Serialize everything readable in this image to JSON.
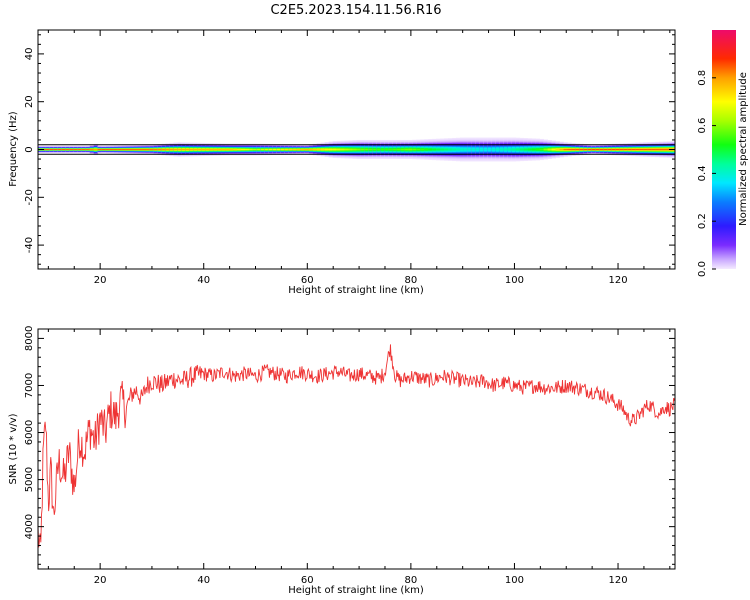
{
  "title": "C2E5.2023.154.11.56.R16",
  "colorbar": {
    "label": "Normalized spectral amplitude",
    "ticks": [
      "0.0",
      "0.2",
      "0.4",
      "0.6",
      "0.8"
    ],
    "tick_values": [
      0.0,
      0.2,
      0.4,
      0.6,
      0.8
    ],
    "range": [
      0.0,
      1.0
    ]
  },
  "chart_data": [
    {
      "type": "heatmap",
      "xlabel": "Height of straight line (km)",
      "ylabel": "Frequency (Hz)",
      "xlim": [
        8,
        131
      ],
      "ylim": [
        -50,
        50
      ],
      "x_ticks": [
        20,
        40,
        60,
        80,
        100,
        120
      ],
      "y_ticks": [
        40,
        20,
        0,
        -20,
        -40
      ],
      "y_tick_labels": [
        "40",
        "20",
        "0",
        "-20",
        "-40"
      ],
      "horizontal_lines": [
        2,
        -2
      ],
      "band_center": 0,
      "band_profile": {
        "x": [
          8,
          18,
          19,
          20,
          30,
          35,
          45,
          50,
          60,
          65,
          70,
          75,
          80,
          85,
          90,
          95,
          100,
          105,
          110,
          115,
          120,
          125,
          131
        ],
        "halfwidth_hz": [
          1.5,
          1.5,
          2.5,
          1.5,
          2,
          3,
          2.5,
          2.5,
          2,
          3.5,
          4,
          4,
          4,
          4.5,
          5,
          5,
          5,
          4.5,
          3,
          2,
          2.5,
          3,
          3.5
        ],
        "peak_amplitude": [
          0.88,
          0.86,
          0.8,
          0.87,
          0.85,
          0.8,
          0.78,
          0.65,
          0.8,
          0.7,
          0.6,
          0.55,
          0.6,
          0.5,
          0.42,
          0.4,
          0.45,
          0.55,
          0.85,
          0.88,
          0.87,
          0.86,
          0.85
        ]
      }
    },
    {
      "type": "line",
      "xlabel": "Height of straight line (km)",
      "ylabel": "SNR (10 * v/v)",
      "xlim": [
        8,
        131
      ],
      "ylim": [
        3100,
        8200
      ],
      "x_ticks": [
        20,
        40,
        60,
        80,
        100,
        120
      ],
      "y_ticks": [
        4000,
        5000,
        6000,
        7000,
        8000
      ],
      "color": "#ee3333",
      "series": [
        {
          "x": [
            8,
            8.5,
            9,
            9.5,
            10,
            10.5,
            11,
            12,
            13,
            14,
            15,
            16,
            17,
            18,
            19,
            20,
            21,
            22,
            23,
            24,
            25,
            26,
            27,
            28,
            29,
            30,
            32,
            34,
            36,
            38,
            40,
            42,
            44,
            46,
            48,
            50,
            52,
            54,
            56,
            58,
            60,
            62,
            64,
            66,
            68,
            70,
            72,
            74,
            75,
            76,
            77,
            78,
            80,
            82,
            84,
            86,
            88,
            90,
            92,
            94,
            96,
            98,
            100,
            102,
            104,
            106,
            108,
            110,
            112,
            114,
            116,
            118,
            120,
            121,
            122,
            123,
            124,
            125,
            126,
            127,
            128,
            129,
            130,
            131
          ],
          "y": [
            3900,
            3300,
            5500,
            6200,
            4500,
            5200,
            4200,
            5400,
            5000,
            5600,
            4800,
            5900,
            5600,
            6100,
            5800,
            6300,
            6000,
            6500,
            6300,
            6700,
            6500,
            6800,
            6900,
            6700,
            7000,
            7100,
            7000,
            7150,
            7100,
            7200,
            7250,
            7200,
            7300,
            7200,
            7250,
            7200,
            7300,
            7250,
            7200,
            7300,
            7250,
            7200,
            7250,
            7300,
            7200,
            7250,
            7200,
            7150,
            7300,
            7800,
            7200,
            7100,
            7200,
            7150,
            7100,
            7200,
            7150,
            7100,
            7050,
            7100,
            7000,
            7050,
            7000,
            6950,
            7000,
            6950,
            6950,
            7000,
            6950,
            6900,
            6850,
            6750,
            6600,
            6500,
            6300,
            6250,
            6350,
            6500,
            6600,
            6500,
            6400,
            6550,
            6500,
            6600
          ]
        }
      ]
    }
  ]
}
